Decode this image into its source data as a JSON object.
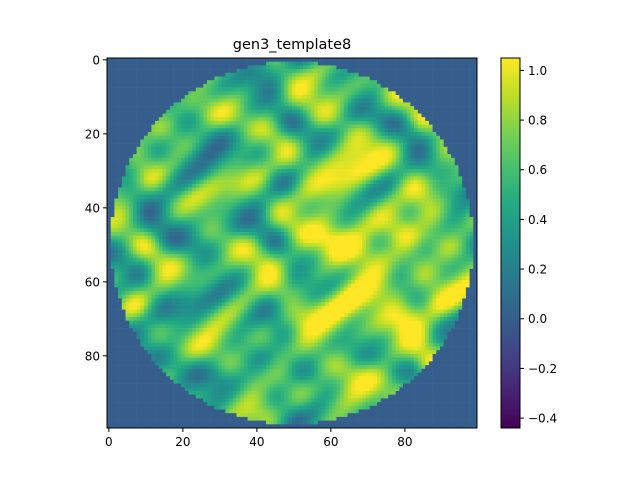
{
  "chart_data": {
    "type": "heatmap",
    "title": "gen3_template8",
    "grid": false,
    "shape": [
      100,
      100
    ],
    "xlim": [
      -0.5,
      99.5
    ],
    "ylim": [
      99.5,
      -0.5
    ],
    "x_ticks": [
      0,
      20,
      40,
      60,
      80
    ],
    "y_ticks": [
      0,
      20,
      40,
      60,
      80
    ],
    "x_tick_labels": [
      "0",
      "20",
      "40",
      "60",
      "80"
    ],
    "y_tick_labels": [
      "0",
      "20",
      "40",
      "60",
      "80"
    ],
    "mask": {
      "shape": "circle",
      "center": [
        49.5,
        49.5
      ],
      "radius": 49,
      "outside_value": 0.0
    },
    "value_range": [
      -0.44,
      1.05
    ],
    "colormap": "viridis",
    "colorbar": {
      "vmin": -0.44,
      "vmax": 1.05,
      "ticks": [
        -0.4,
        -0.2,
        0.0,
        0.2,
        0.4,
        0.6,
        0.8,
        1.0
      ],
      "tick_labels": [
        "−0.4",
        "−0.2",
        "0.0",
        "0.2",
        "0.4",
        "0.6",
        "0.8",
        "1.0"
      ]
    }
  }
}
